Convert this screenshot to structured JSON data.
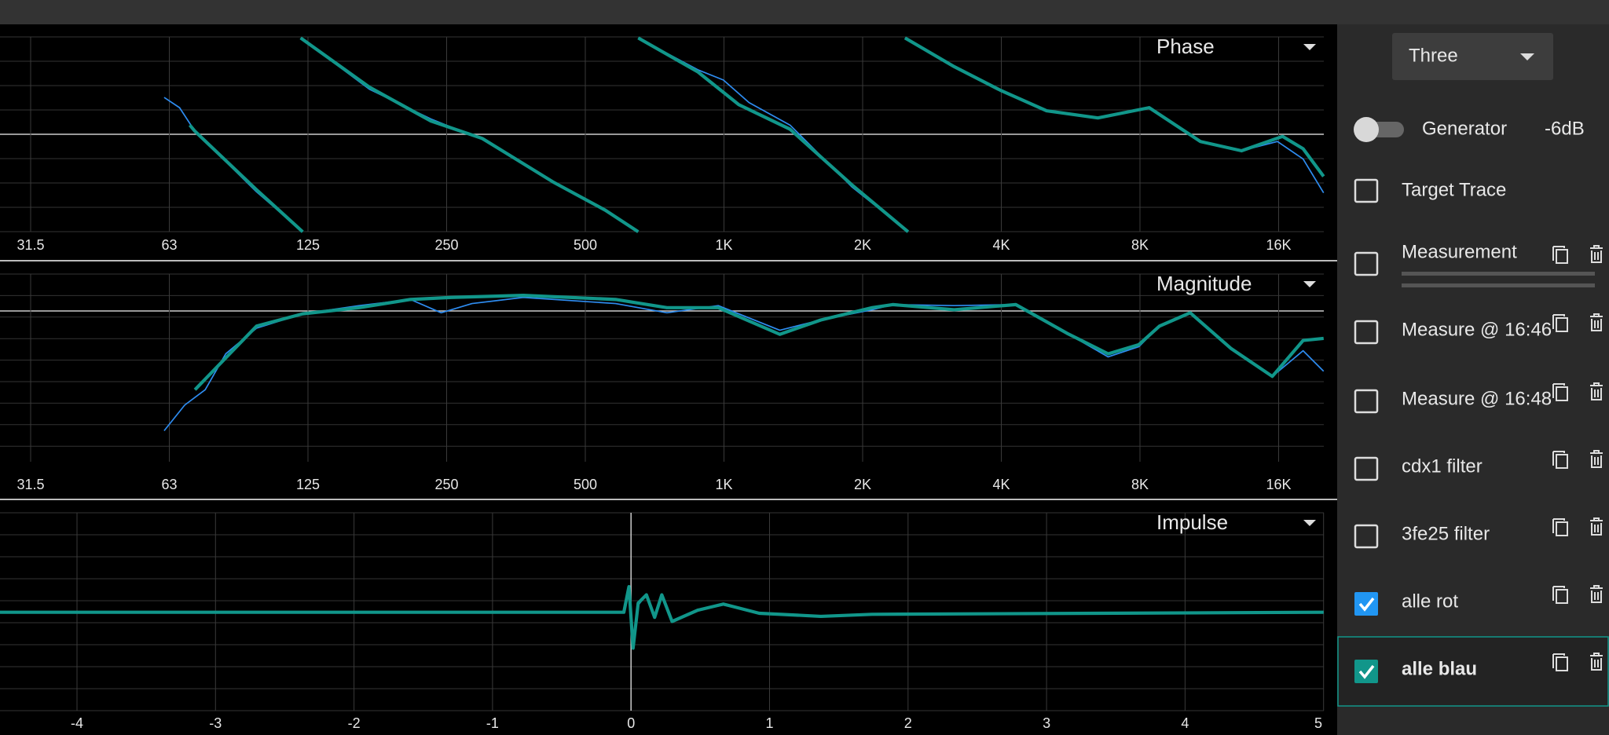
{
  "panels": [
    {
      "title": "Phase",
      "x_labels": [
        "31.5",
        "63",
        "125",
        "250",
        "500",
        "1K",
        "2K",
        "4K",
        "8K",
        "16K"
      ]
    },
    {
      "title": "Magnitude",
      "x_labels": [
        "31.5",
        "63",
        "125",
        "250",
        "500",
        "1K",
        "2K",
        "4K",
        "8K",
        "16K"
      ]
    },
    {
      "title": "Impulse",
      "x_labels": [
        "-4",
        "-3",
        "-2",
        "-1",
        "0",
        "1",
        "2",
        "3",
        "4",
        "5"
      ]
    }
  ],
  "sidebar": {
    "preset": "Three",
    "generator": {
      "label": "Generator",
      "level": "-6dB",
      "on": false
    },
    "traces": [
      {
        "label": "Target Trace",
        "checked": false
      },
      {
        "label": "Measurement",
        "checked": false
      },
      {
        "label": "Measure @ 16:46",
        "checked": false
      },
      {
        "label": "Measure @ 16:48",
        "checked": false
      },
      {
        "label": "cdx1 filter",
        "checked": false
      },
      {
        "label": "3fe25 filter",
        "checked": false
      },
      {
        "label": "alle rot",
        "checked": true
      },
      {
        "label": "alle blau",
        "checked": true
      }
    ]
  }
}
